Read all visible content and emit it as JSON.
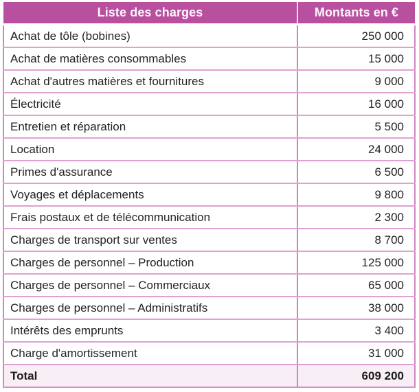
{
  "table": {
    "header": {
      "charges_label": "Liste des charges",
      "amounts_label": "Montants en €"
    },
    "rows": [
      {
        "label": "Achat de tôle (bobines)",
        "amount": "250 000"
      },
      {
        "label": "Achat de matières consommables",
        "amount": "15 000"
      },
      {
        "label": "Achat d'autres matières et fournitures",
        "amount": "9 000"
      },
      {
        "label": "Électricité",
        "amount": "16 000"
      },
      {
        "label": "Entretien et réparation",
        "amount": "5 500"
      },
      {
        "label": "Location",
        "amount": "24 000"
      },
      {
        "label": "Primes d'assurance",
        "amount": "6 500"
      },
      {
        "label": "Voyages et déplacements",
        "amount": "9 800"
      },
      {
        "label": "Frais postaux et de télécommunication",
        "amount": "2 300"
      },
      {
        "label": "Charges de transport sur ventes",
        "amount": "8 700"
      },
      {
        "label": "Charges de personnel – Production",
        "amount": "125 000"
      },
      {
        "label": "Charges de personnel – Commerciaux",
        "amount": "65 000"
      },
      {
        "label": "Charges de personnel – Administratifs",
        "amount": "38 000"
      },
      {
        "label": "Intérêts des emprunts",
        "amount": "3 400"
      },
      {
        "label": "Charge d'amortissement",
        "amount": "31 000"
      }
    ],
    "total": {
      "label": "Total",
      "amount": "609 200"
    }
  },
  "colors": {
    "header_bg": "#b8509f",
    "header_text": "#fdf6fb",
    "border_vertical": "#d084c1",
    "border_horizontal": "#e0a0d1",
    "total_row_bg": "#f8eff6",
    "body_text": "#222222"
  }
}
